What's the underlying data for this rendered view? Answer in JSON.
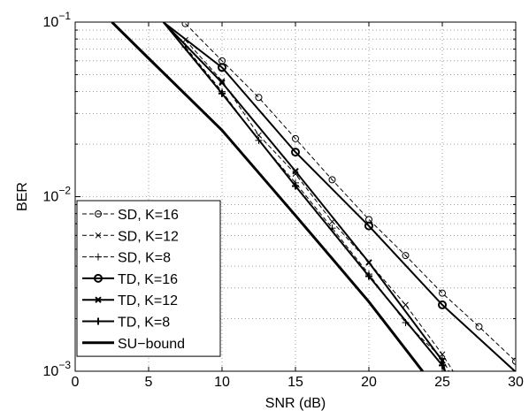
{
  "chart_data": {
    "type": "line",
    "title": "",
    "xlabel": "SNR (dB)",
    "ylabel": "BER",
    "xlim": [
      0,
      30
    ],
    "ylim": [
      0.001,
      0.1
    ],
    "yscale": "log",
    "grid": true,
    "legend_position": "bottom-left",
    "x_ticks": [
      0,
      5,
      10,
      15,
      20,
      25,
      30
    ],
    "y_ticks": [
      {
        "value": 0.1,
        "base": "10",
        "exp": "−1"
      },
      {
        "value": 0.01,
        "base": "10",
        "exp": "−2"
      },
      {
        "value": 0.001,
        "base": "10",
        "exp": "−3"
      }
    ],
    "series": [
      {
        "name": "SD, K=16",
        "style": "dashed",
        "marker": "circle",
        "x": [
          7.5,
          10,
          12.5,
          15,
          17.5,
          20,
          22.5,
          25,
          27.5,
          30
        ],
        "y": [
          0.098,
          0.06,
          0.037,
          0.0215,
          0.0125,
          0.0074,
          0.0046,
          0.0028,
          0.0018,
          0.00114
        ]
      },
      {
        "name": "SD, K=12",
        "style": "dashed",
        "marker": "x",
        "x": [
          7.5,
          10,
          12.5,
          15,
          17.5,
          20,
          22.5,
          25,
          25.8
        ],
        "y": [
          0.079,
          0.046,
          0.0225,
          0.0135,
          0.0072,
          0.0042,
          0.0024,
          0.00125,
          0.00098
        ]
      },
      {
        "name": "SD, K=8",
        "style": "dashed",
        "marker": "plus",
        "x": [
          7.5,
          10,
          12.5,
          15,
          17.5,
          20,
          22.5,
          25,
          25.5
        ],
        "y": [
          0.072,
          0.04,
          0.021,
          0.012,
          0.0066,
          0.0036,
          0.0019,
          0.00118,
          0.00098
        ]
      },
      {
        "name": "TD, K=16",
        "style": "solid",
        "marker": "circle",
        "x": [
          6,
          10,
          15,
          20,
          25,
          30
        ],
        "y": [
          0.1,
          0.055,
          0.018,
          0.0068,
          0.0024,
          0.00099
        ]
      },
      {
        "name": "TD, K=12",
        "style": "solid",
        "marker": "x",
        "x": [
          6,
          10,
          15,
          20,
          25,
          25.2
        ],
        "y": [
          0.1,
          0.045,
          0.014,
          0.0042,
          0.00115,
          0.00099
        ]
      },
      {
        "name": "TD, K=8",
        "style": "solid",
        "marker": "plus",
        "x": [
          6,
          10,
          15,
          20,
          25,
          25.2
        ],
        "y": [
          0.1,
          0.039,
          0.0115,
          0.0035,
          0.00108,
          0.00099
        ]
      },
      {
        "name": "SU−bound",
        "style": "solid-thick",
        "marker": "none",
        "x": [
          2.5,
          5,
          10,
          15,
          20,
          23.7
        ],
        "y": [
          0.1,
          0.062,
          0.024,
          0.0078,
          0.0025,
          0.00099
        ]
      }
    ]
  }
}
